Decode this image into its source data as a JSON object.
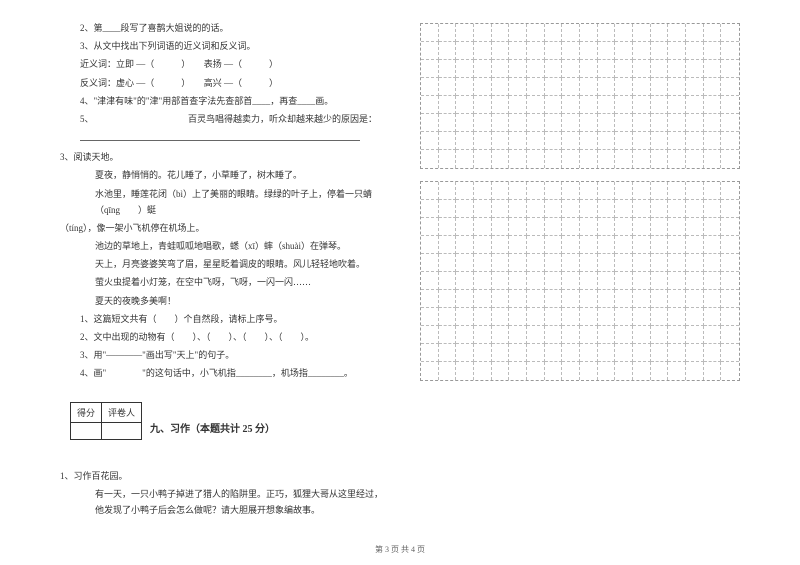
{
  "q2": {
    "l1": "2、第____段写了喜鹊大姐说的的话。",
    "l2": "3、从文中找出下列词语的近义词和反义词。",
    "l3": "近义词：立即 —（　　　）　　表扬 —（　　　）",
    "l4": "反义词：虚心 —（　　　）　　高兴 —（　　　）",
    "l5": "4、\"津津有味\"的\"津\"用部首查字法先查部首____，再查____画。",
    "l6": "5、　　　　　　　　　　　百灵鸟唱得越卖力，听众却越来越少的原因是："
  },
  "q3": {
    "title": "3、阅读天地。",
    "p1": "夏夜，静悄悄的。花儿睡了，小草睡了，树木睡了。",
    "p2": "水池里，睡莲花闭（bì）上了美丽的眼睛。绿绿的叶子上，停着一只蜻（qīng　　）蜓",
    "p2b": "（tíng），像一架小飞机停在机场上。",
    "p3": "池边的草地上，青蛙呱呱地唱歌，蟋（xī）蟀（shuài）在弹琴。",
    "p4": "天上，月亮婆婆笑弯了眉，星星眨着调皮的眼睛。风儿轻轻地吹着。",
    "p5": "萤火虫提着小灯笼，在空中飞呀，飞呀，一闪一闪……",
    "p6": "夏天的夜晚多美啊！",
    "q1": "1、这篇短文共有（　　）个自然段，请标上序号。",
    "q2": "2、文中出现的动物有（　　）、（　　）、（　　）、（　　）。",
    "q3": "3、用\"————\"画出写\"天上\"的句子。",
    "q4": "4、画\"　　　　\"的这句话中，小飞机指________，机场指________。"
  },
  "score": {
    "c1": "得分",
    "c2": "评卷人"
  },
  "section9": {
    "title": "九、习作（本题共计 25 分）",
    "q": "1、习作百花园。",
    "text": "有一天，一只小鸭子掉进了猎人的陷阱里。正巧，狐狸大哥从这里经过，　他发现了小鸭子后会怎么做呢？请大胆展开想象编故事。"
  },
  "footer": "第 3 页 共 4 页",
  "grid": {
    "cols": 18,
    "rows1": 8,
    "rows2": 11
  }
}
